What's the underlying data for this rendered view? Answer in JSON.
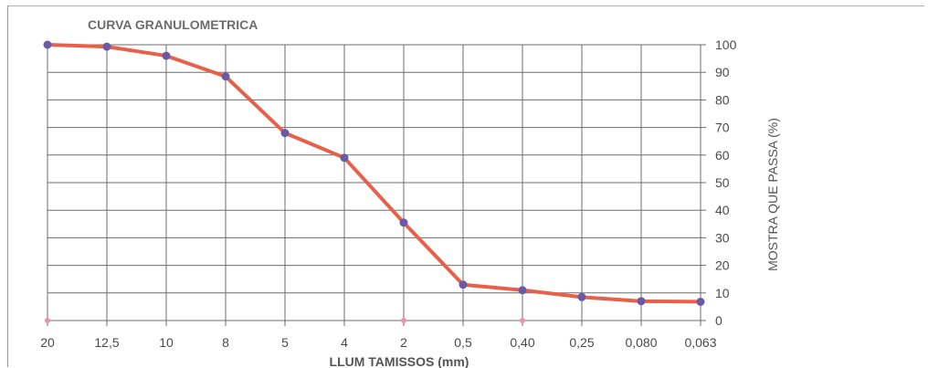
{
  "chart_data": {
    "type": "line",
    "title": "CURVA GRANULOMETRICA",
    "xlabel": "LLUM TAMISSOS (mm)",
    "ylabel": "MOSTRA QUE PASSA  (%)",
    "categories": [
      "20",
      "12,5",
      "10",
      "8",
      "5",
      "4",
      "2",
      "0,5",
      "0,40",
      "0,25",
      "0,080",
      "0,063"
    ],
    "series": [
      {
        "values": [
          100,
          99.3,
          96,
          88.5,
          68,
          59,
          35.5,
          13,
          11,
          8.5,
          7,
          6.8
        ]
      }
    ],
    "yticks": [
      "0",
      "10",
      "20",
      "30",
      "40",
      "50",
      "60",
      "70",
      "80",
      "90",
      "100"
    ],
    "ylim": [
      0,
      100
    ],
    "y_axis_position": "right",
    "grid": true,
    "colors": {
      "line": "#e8604a",
      "marker": "#6a5aa6",
      "grid": "#6e6e6e",
      "small_marker": "#ef8fb0"
    }
  }
}
